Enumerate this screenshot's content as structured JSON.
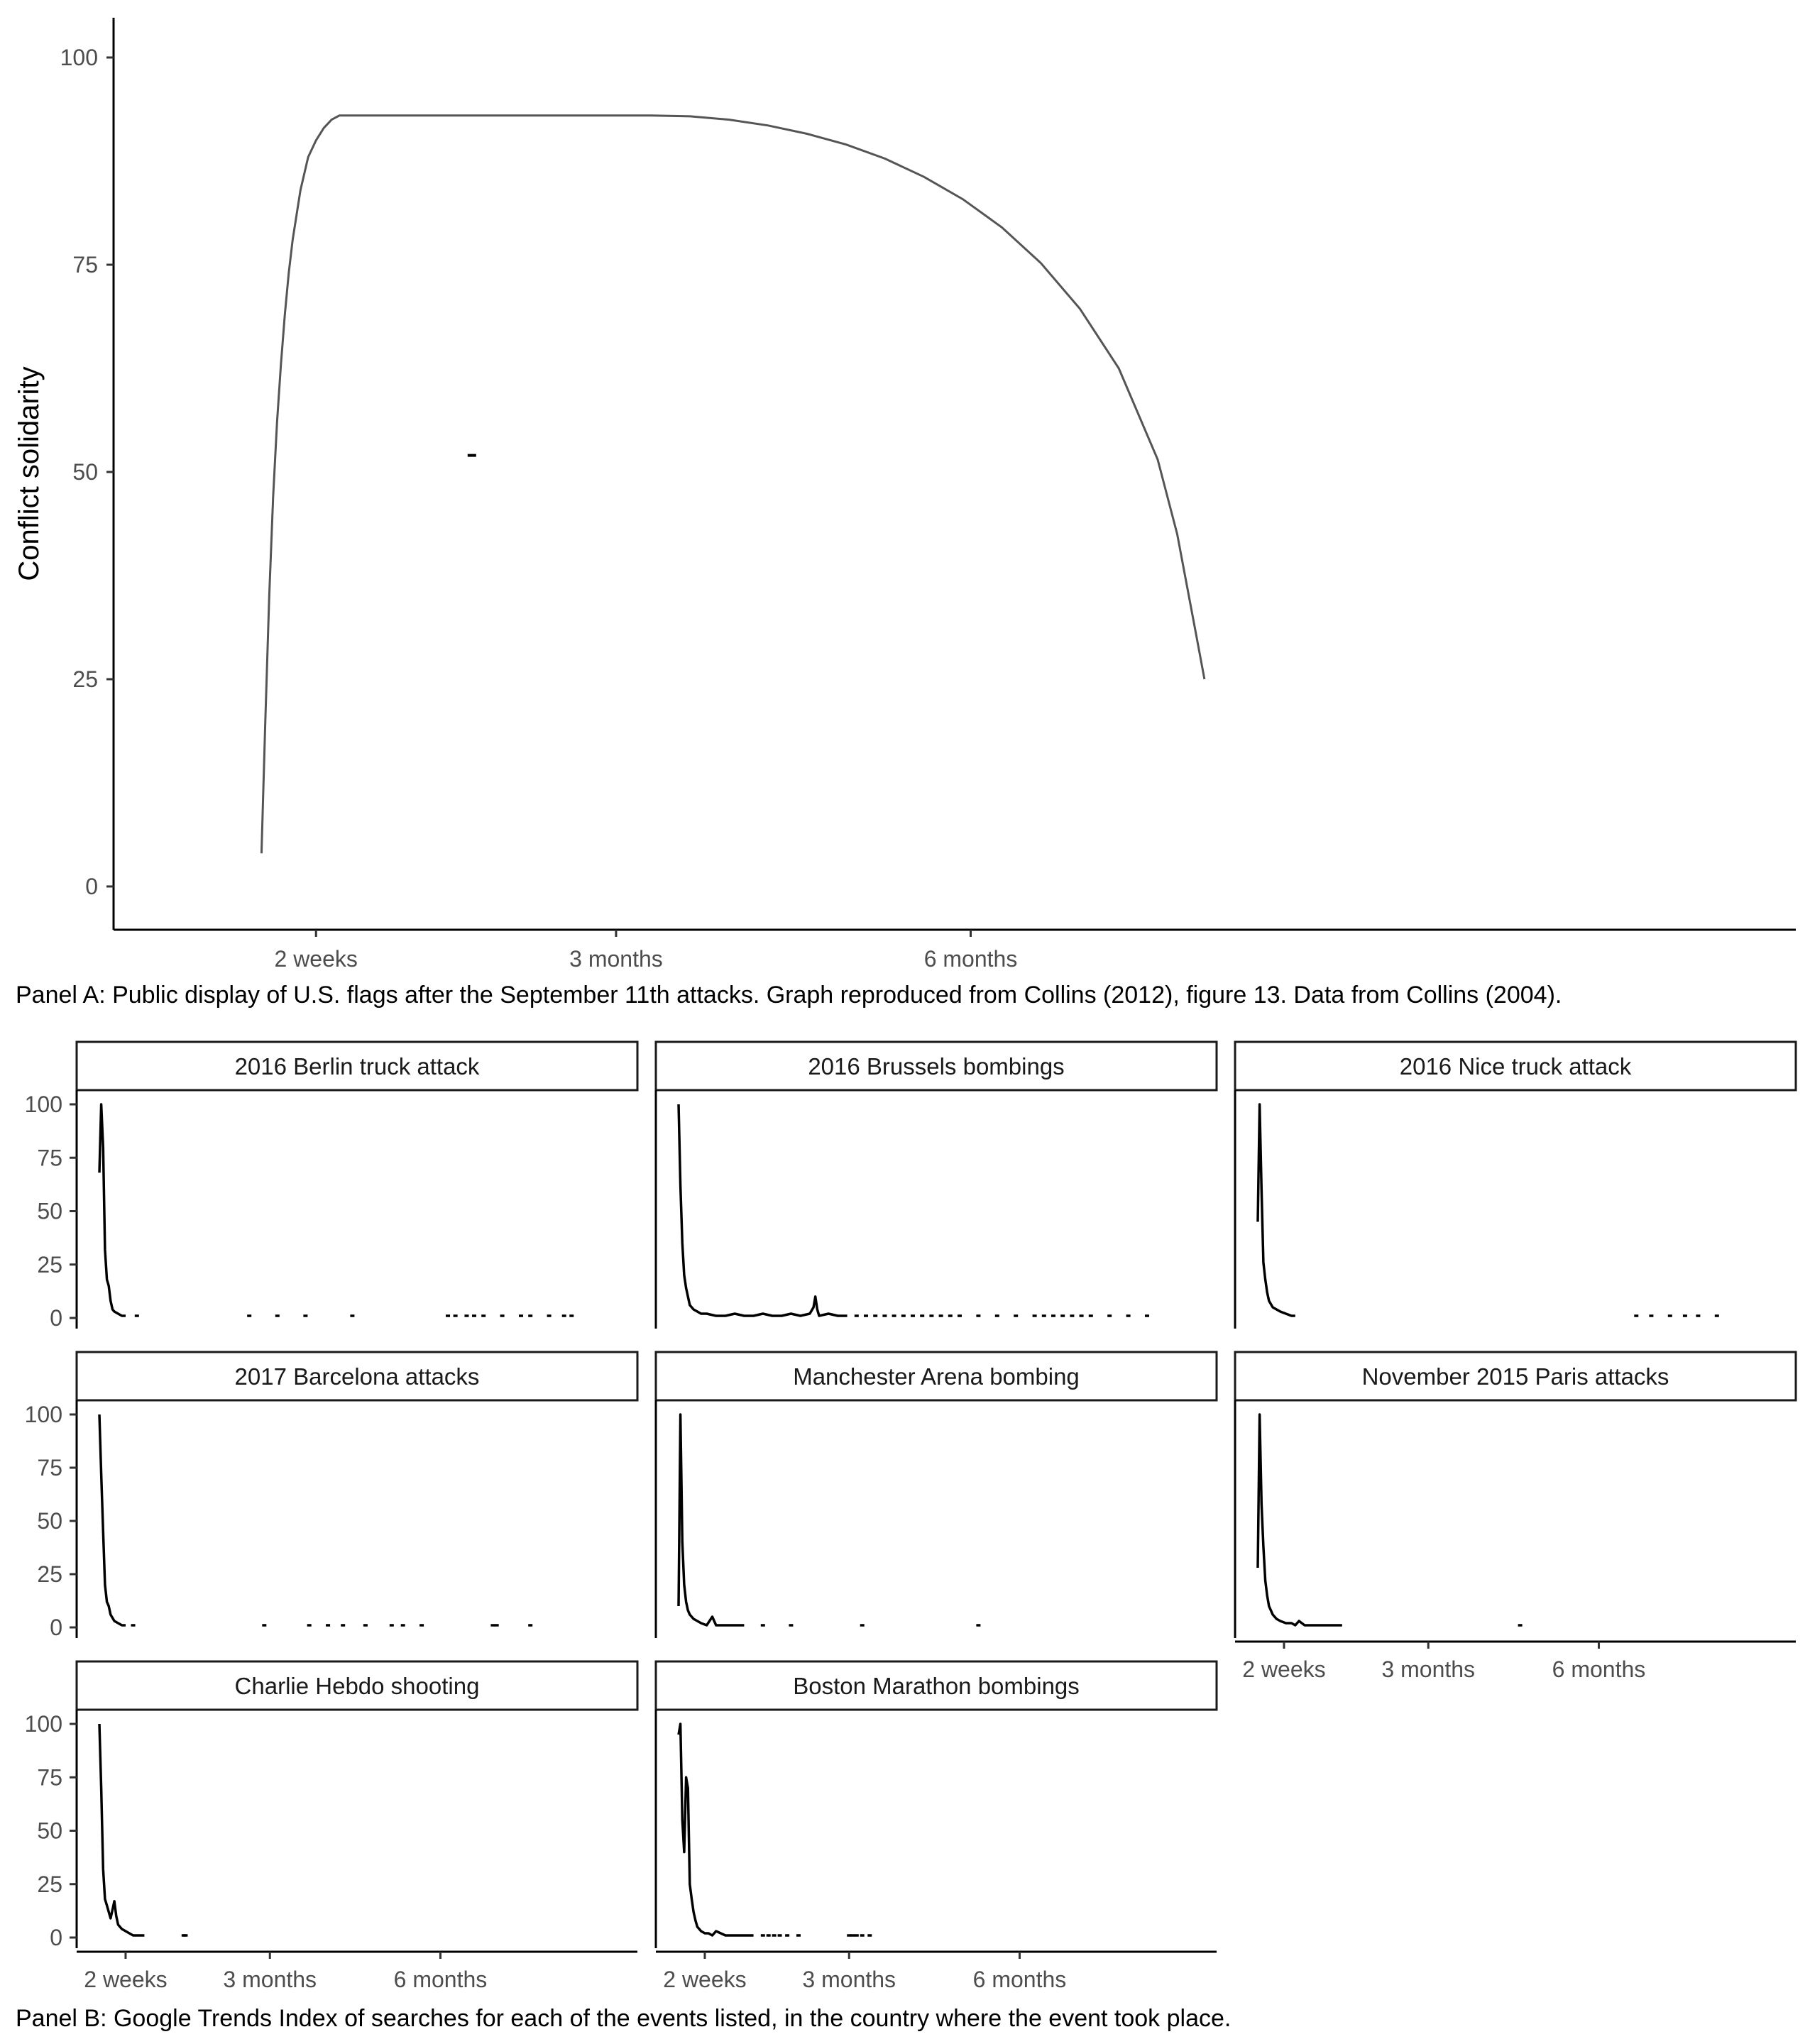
{
  "panel_a": {
    "caption": "Panel A: Public display of U.S. flags after the September 11th attacks. Graph reproduced from Collins (2012), figure 13. Data from Collins (2004).",
    "ylabel": "Conflict solidarity",
    "y_ticks": [
      "0",
      "25",
      "50",
      "75",
      "100"
    ],
    "x_ticks": [
      "2 weeks",
      "3 months",
      "6 months"
    ]
  },
  "panel_b": {
    "caption": "Panel B: Google Trends Index of searches for each of the events listed, in the country where the event took place.",
    "y_ticks": [
      "0",
      "25",
      "50",
      "75",
      "100"
    ],
    "x_ticks": [
      "2 weeks",
      "3 months",
      "6 months"
    ]
  },
  "chart_data": [
    {
      "type": "line",
      "ylabel": "Conflict solidarity",
      "ylim": [
        0,
        100
      ],
      "x_unit": "days since event",
      "xlim": [
        -15,
        347
      ],
      "x_tick_values": [
        14,
        91,
        182
      ],
      "x_tick_labels": [
        "2 weeks",
        "3 months",
        "6 months"
      ],
      "grid": false,
      "series": [
        {
          "x": [
            0,
            1,
            2,
            3,
            4,
            5,
            6,
            7,
            8,
            9,
            10,
            12,
            14,
            16,
            18,
            20,
            25,
            30,
            40,
            60,
            80,
            100,
            110,
            120,
            130,
            140,
            150,
            160,
            170,
            180,
            190,
            200,
            210,
            220,
            230,
            235,
            240,
            242
          ],
          "y": [
            4,
            20,
            35,
            47,
            56,
            63,
            69,
            74,
            78,
            81,
            84,
            88,
            90,
            91.5,
            92.5,
            93,
            93,
            93,
            93,
            93,
            93,
            93,
            92.9,
            92.5,
            91.8,
            90.8,
            89.5,
            87.8,
            85.6,
            82.9,
            79.5,
            75.2,
            69.7,
            62.5,
            51.5,
            42.5,
            30,
            25
          ]
        }
      ],
      "annotations": [
        {
          "x": 54,
          "y": 52
        }
      ]
    },
    {
      "type": "line",
      "facets": true,
      "ylim": [
        0,
        100
      ],
      "x_unit": "days since event",
      "xlim": [
        -15,
        347
      ],
      "x_tick_values": [
        14,
        91,
        182
      ],
      "x_tick_labels": [
        "2 weeks",
        "3 months",
        "6 months"
      ],
      "grid": false,
      "panels": [
        {
          "title": "2016 Berlin truck attack",
          "x": [
            0,
            1,
            2,
            3,
            4,
            5,
            6,
            7,
            8,
            10,
            12,
            14
          ],
          "y": [
            68,
            100,
            80,
            32,
            18,
            15,
            8,
            4,
            3,
            2,
            1,
            1
          ],
          "scattered_x": [
            20,
            80,
            95,
            110,
            135,
            186,
            190,
            196,
            200,
            205,
            215,
            225,
            230,
            240,
            248,
            252
          ]
        },
        {
          "title": "2016 Brussels bombings",
          "x": [
            0,
            1,
            2,
            3,
            4,
            5,
            6,
            8,
            10,
            12,
            15,
            20,
            25,
            30,
            35,
            40,
            45,
            50,
            55,
            60,
            65,
            70,
            72,
            73,
            74,
            75,
            80,
            85,
            90
          ],
          "y": [
            100,
            62,
            35,
            20,
            14,
            10,
            6,
            4,
            3,
            2,
            2,
            1,
            1,
            2,
            1,
            1,
            2,
            1,
            1,
            2,
            1,
            2,
            5,
            10,
            4,
            1,
            2,
            1,
            1
          ],
          "scattered_x": [
            95,
            100,
            105,
            110,
            115,
            120,
            125,
            130,
            135,
            140,
            145,
            150,
            160,
            170,
            180,
            190,
            195,
            200,
            205,
            210,
            215,
            220,
            230,
            240,
            250
          ]
        },
        {
          "title": "2016 Nice truck attack",
          "x": [
            0,
            1,
            2,
            3,
            4,
            5,
            6,
            8,
            10,
            12,
            15,
            18,
            20
          ],
          "y": [
            45,
            100,
            60,
            26,
            18,
            12,
            8,
            5,
            4,
            3,
            2,
            1,
            1
          ],
          "scattered_x": [
            202,
            210,
            220,
            228,
            235,
            245
          ]
        },
        {
          "title": "2017 Barcelona attacks",
          "x": [
            0,
            1,
            2,
            3,
            4,
            5,
            6,
            8,
            10,
            12,
            14
          ],
          "y": [
            100,
            72,
            45,
            20,
            12,
            10,
            6,
            3,
            2,
            1,
            1
          ],
          "scattered_x": [
            18,
            88,
            112,
            122,
            130,
            142,
            156,
            162,
            172,
            210,
            212,
            230
          ]
        },
        {
          "title": "Manchester Arena bombing",
          "x": [
            0,
            1,
            2,
            3,
            4,
            5,
            6,
            8,
            10,
            12,
            15,
            18,
            20,
            22,
            25,
            30,
            35
          ],
          "y": [
            10,
            100,
            40,
            20,
            12,
            8,
            6,
            4,
            3,
            2,
            1,
            5,
            1,
            1,
            1,
            1,
            1
          ],
          "scattered_x": [
            45,
            60,
            98,
            160
          ]
        },
        {
          "title": "November 2015 Paris attacks",
          "x": [
            0,
            1,
            2,
            3,
            4,
            5,
            6,
            8,
            10,
            12,
            15,
            18,
            20,
            22,
            25,
            30,
            35,
            40,
            45
          ],
          "y": [
            28,
            100,
            58,
            38,
            22,
            15,
            10,
            6,
            4,
            3,
            2,
            2,
            1,
            3,
            1,
            1,
            1,
            1,
            1
          ],
          "scattered_x": [
            140
          ]
        },
        {
          "title": "Charlie Hebdo shooting",
          "x": [
            0,
            1,
            2,
            3,
            4,
            5,
            6,
            7,
            8,
            9,
            10,
            11,
            12,
            14,
            16,
            18,
            20,
            24
          ],
          "y": [
            100,
            70,
            32,
            18,
            15,
            12,
            9,
            13,
            17,
            10,
            6,
            5,
            4,
            3,
            2,
            1,
            1,
            1
          ],
          "scattered_x": [
            45,
            46
          ]
        },
        {
          "title": "Boston Marathon bombings",
          "x": [
            0,
            1,
            2,
            3,
            4,
            5,
            6,
            7,
            8,
            9,
            10,
            12,
            14,
            16,
            18,
            20,
            25,
            30,
            35,
            40
          ],
          "y": [
            95,
            100,
            55,
            40,
            75,
            70,
            25,
            18,
            12,
            8,
            5,
            3,
            2,
            2,
            1,
            3,
            1,
            1,
            1,
            1
          ],
          "scattered_x": [
            45,
            48,
            51,
            54,
            58,
            64,
            91,
            93,
            95,
            98,
            102
          ]
        }
      ]
    }
  ]
}
